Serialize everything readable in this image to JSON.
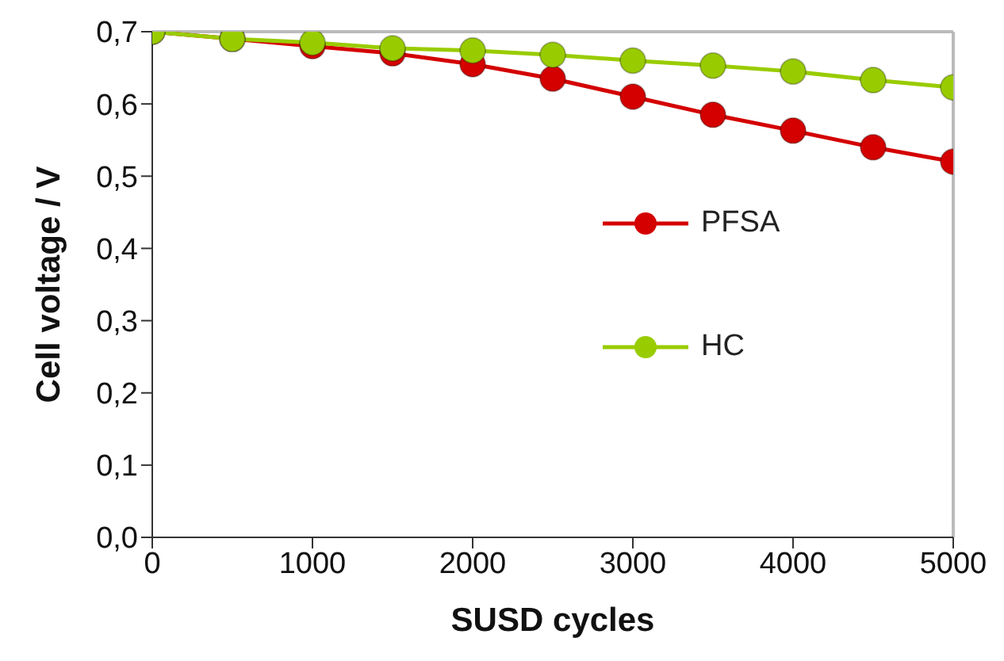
{
  "chart_data": {
    "type": "line",
    "xlabel": "SUSD cycles",
    "ylabel": "Cell voltage / V",
    "x": [
      0,
      500,
      1000,
      1500,
      2000,
      2500,
      3000,
      3500,
      4000,
      4500,
      5000
    ],
    "series": [
      {
        "name": "PFSA",
        "color": "#d40000",
        "values": [
          0.7,
          0.69,
          0.68,
          0.67,
          0.655,
          0.635,
          0.61,
          0.585,
          0.563,
          0.54,
          0.52
        ]
      },
      {
        "name": "HC",
        "color": "#99cc00",
        "values": [
          0.7,
          0.69,
          0.685,
          0.677,
          0.674,
          0.668,
          0.66,
          0.653,
          0.645,
          0.633,
          0.623
        ]
      }
    ],
    "xlim": [
      0,
      5000
    ],
    "xticks": [
      0,
      1000,
      2000,
      3000,
      4000,
      5000
    ],
    "ylim": [
      0,
      0.7
    ],
    "yticks": [
      {
        "value": 0,
        "label": "0,0"
      },
      {
        "value": 0.1,
        "label": "0,1"
      },
      {
        "value": 0.2,
        "label": "0,2"
      },
      {
        "value": 0.3,
        "label": "0,3"
      },
      {
        "value": 0.4,
        "label": "0,4"
      },
      {
        "value": 0.5,
        "label": "0,5"
      },
      {
        "value": 0.6,
        "label": "0,6"
      },
      {
        "value": 0.7,
        "label": "0,7"
      }
    ],
    "grid": false,
    "legend": "right",
    "marker": "circle",
    "line_style": "solid"
  }
}
